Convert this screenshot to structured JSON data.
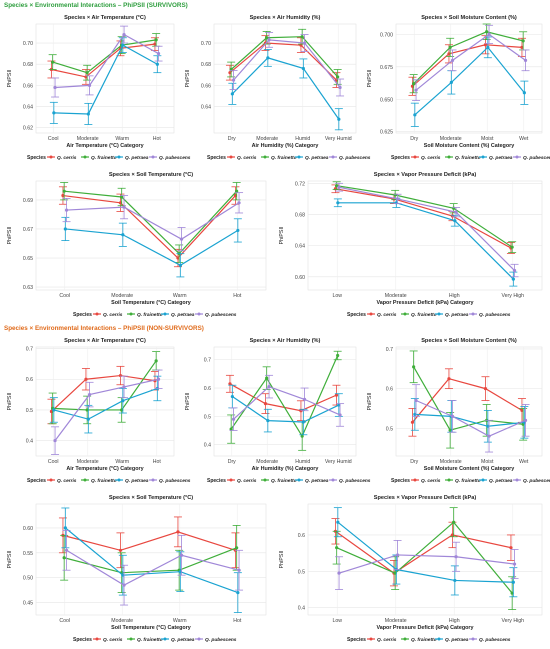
{
  "sections": {
    "survivors_title": "Species × Environmental Interactions – PhiPSII (SURVIVORS)",
    "nonsurvivors_title": "Species × Environmental Interactions – PhiPSII (NON-SURVIVORS)"
  },
  "legend": {
    "title": "Species",
    "entries": [
      "Q. cerris",
      "Q. frainetto",
      "Q. petraea",
      "Q. pubescens"
    ]
  },
  "colors": {
    "Q. cerris": "#e8473f",
    "Q. frainetto": "#3fae3a",
    "Q. petraea": "#1aa3d1",
    "Q. pubescens": "#a087d8"
  },
  "chart_data": [
    {
      "type": "line",
      "title": "Species × Air Temperature (°C)",
      "xlabel": "Air Temperature (°C) Category",
      "ylabel": "PhiPSII",
      "categories": [
        "Cool",
        "Moderate",
        "Warm",
        "Hot"
      ],
      "ylim": [
        0.615,
        0.718
      ],
      "yticks": [
        0.62,
        0.64,
        0.66,
        0.68,
        0.7
      ],
      "ytick_labels": [
        "0.62",
        "0.64",
        "0.66",
        "0.68",
        "0.70"
      ],
      "series": [
        {
          "name": "Q. cerris",
          "values": [
            0.675,
            0.668,
            0.695,
            0.699
          ],
          "err": [
            0.008,
            0.007,
            0.007,
            0.006
          ]
        },
        {
          "name": "Q. frainetto",
          "values": [
            0.682,
            0.672,
            0.698,
            0.703
          ],
          "err": [
            0.007,
            0.007,
            0.008,
            0.006
          ]
        },
        {
          "name": "Q. petraea",
          "values": [
            0.634,
            0.633,
            0.698,
            0.68
          ],
          "err": [
            0.01,
            0.01,
            0.007,
            0.008
          ]
        },
        {
          "name": "Q. pubescens",
          "values": [
            0.658,
            0.66,
            0.708,
            0.69
          ],
          "err": [
            0.009,
            0.009,
            0.008,
            0.007
          ]
        }
      ]
    },
    {
      "type": "line",
      "title": "Species × Air Humidity (%)",
      "xlabel": "Air Humidity (%) Category",
      "ylabel": "PhiPSII",
      "categories": [
        "Dry",
        "Moderate",
        "Humid",
        "Very Humid"
      ],
      "ylim": [
        0.615,
        0.718
      ],
      "yticks": [
        0.64,
        0.66,
        0.68,
        0.7
      ],
      "ytick_labels": [
        "0.64",
        "0.66",
        "0.68",
        "0.70"
      ],
      "series": [
        {
          "name": "Q. cerris",
          "values": [
            0.672,
            0.7,
            0.698,
            0.665
          ],
          "err": [
            0.007,
            0.007,
            0.007,
            0.007
          ]
        },
        {
          "name": "Q. frainetto",
          "values": [
            0.675,
            0.705,
            0.706,
            0.668
          ],
          "err": [
            0.007,
            0.006,
            0.007,
            0.007
          ]
        },
        {
          "name": "Q. petraea",
          "values": [
            0.652,
            0.686,
            0.676,
            0.628
          ],
          "err": [
            0.01,
            0.008,
            0.009,
            0.01
          ]
        },
        {
          "name": "Q. pubescens",
          "values": [
            0.665,
            0.703,
            0.7,
            0.658
          ],
          "err": [
            0.009,
            0.007,
            0.008,
            0.008
          ]
        }
      ]
    },
    {
      "type": "line",
      "title": "Species × Soil Moisture Content (%)",
      "xlabel": "Soil Moisture Content (%) Category",
      "ylabel": "PhiPSII",
      "categories": [
        "Dry",
        "Moderate",
        "Moist",
        "Wet"
      ],
      "ylim": [
        0.624,
        0.708
      ],
      "yticks": [
        0.625,
        0.65,
        0.675,
        0.7
      ],
      "ytick_labels": [
        "0.625",
        "0.650",
        "0.675",
        "0.700"
      ],
      "series": [
        {
          "name": "Q. cerris",
          "values": [
            0.66,
            0.685,
            0.692,
            0.69
          ],
          "err": [
            0.007,
            0.007,
            0.007,
            0.007
          ]
        },
        {
          "name": "Q. frainetto",
          "values": [
            0.662,
            0.69,
            0.702,
            0.695
          ],
          "err": [
            0.007,
            0.007,
            0.006,
            0.007
          ]
        },
        {
          "name": "Q. petraea",
          "values": [
            0.638,
            0.663,
            0.69,
            0.655
          ],
          "err": [
            0.009,
            0.009,
            0.008,
            0.009
          ]
        },
        {
          "name": "Q. pubescens",
          "values": [
            0.657,
            0.68,
            0.7,
            0.68
          ],
          "err": [
            0.008,
            0.008,
            0.007,
            0.008
          ]
        }
      ]
    },
    {
      "type": "line",
      "title": "Species × Soil Temperature (°C)",
      "xlabel": "Soil Temperature (°C) Category",
      "ylabel": "PhiPSII",
      "categories": [
        "Cool",
        "Moderate",
        "Warm",
        "Hot"
      ],
      "ylim": [
        0.628,
        0.703
      ],
      "yticks": [
        0.63,
        0.65,
        0.67,
        0.69
      ],
      "ytick_labels": [
        "0.63",
        "0.65",
        "0.67",
        "0.69"
      ],
      "series": [
        {
          "name": "Q. cerris",
          "values": [
            0.693,
            0.688,
            0.65,
            0.693
          ],
          "err": [
            0.006,
            0.006,
            0.006,
            0.006
          ]
        },
        {
          "name": "Q. frainetto",
          "values": [
            0.696,
            0.692,
            0.653,
            0.696
          ],
          "err": [
            0.006,
            0.006,
            0.006,
            0.006
          ]
        },
        {
          "name": "Q. petraea",
          "values": [
            0.67,
            0.666,
            0.645,
            0.669
          ],
          "err": [
            0.008,
            0.008,
            0.008,
            0.008
          ]
        },
        {
          "name": "Q. pubescens",
          "values": [
            0.683,
            0.685,
            0.663,
            0.688
          ],
          "err": [
            0.008,
            0.008,
            0.008,
            0.007
          ]
        }
      ]
    },
    {
      "type": "line",
      "title": "Species × Vapor Pressure Deficit (kPa)",
      "xlabel": "Vapor Pressure Deficit (kPa) Category",
      "ylabel": "PhiPSII",
      "categories": [
        "Low",
        "Moderate",
        "High",
        "Very High"
      ],
      "ylim": [
        0.583,
        0.723
      ],
      "yticks": [
        0.6,
        0.64,
        0.68,
        0.72
      ],
      "ytick_labels": [
        "0.60",
        "0.64",
        "0.68",
        "0.72"
      ],
      "series": [
        {
          "name": "Q. cerris",
          "values": [
            0.713,
            0.7,
            0.678,
            0.637
          ],
          "err": [
            0.005,
            0.006,
            0.006,
            0.007
          ]
        },
        {
          "name": "Q. frainetto",
          "values": [
            0.717,
            0.705,
            0.688,
            0.638
          ],
          "err": [
            0.005,
            0.006,
            0.006,
            0.007
          ]
        },
        {
          "name": "Q. petraea",
          "values": [
            0.695,
            0.695,
            0.672,
            0.597
          ],
          "err": [
            0.005,
            0.006,
            0.007,
            0.009
          ]
        },
        {
          "name": "Q. pubescens",
          "values": [
            0.715,
            0.7,
            0.683,
            0.608
          ],
          "err": [
            0.005,
            0.006,
            0.006,
            0.008
          ]
        }
      ]
    },
    {
      "type": "line",
      "title": "Species × Air Temperature (°C)",
      "xlabel": "Air Temperature (°C) Category",
      "ylabel": "PhiPSII",
      "categories": [
        "Cool",
        "Moderate",
        "Warm",
        "Hot"
      ],
      "ylim": [
        0.35,
        0.705
      ],
      "yticks": [
        0.4,
        0.5,
        0.6,
        0.7
      ],
      "ytick_labels": [
        "0.4",
        "0.5",
        "0.6",
        "0.7"
      ],
      "series": [
        {
          "name": "Q. cerris",
          "values": [
            0.495,
            0.6,
            0.612,
            0.595
          ],
          "err": [
            0.04,
            0.035,
            0.03,
            0.03
          ]
        },
        {
          "name": "Q. frainetto",
          "values": [
            0.505,
            0.5,
            0.5,
            0.66
          ],
          "err": [
            0.05,
            0.045,
            0.04,
            0.03
          ]
        },
        {
          "name": "Q. petraea",
          "values": [
            0.5,
            0.47,
            0.53,
            0.57
          ],
          "err": [
            0.04,
            0.045,
            0.04,
            0.04
          ]
        },
        {
          "name": "Q. pubescens",
          "values": [
            0.4,
            0.55,
            0.575,
            0.6
          ],
          "err": [
            0.045,
            0.04,
            0.035,
            0.03
          ]
        }
      ]
    },
    {
      "type": "line",
      "title": "Species × Air Humidity (%)",
      "xlabel": "Air Humidity (%) Category",
      "ylabel": "PhiPSII",
      "categories": [
        "Dry",
        "Moderate",
        "Humid",
        "Very Humid"
      ],
      "ylim": [
        0.36,
        0.745
      ],
      "yticks": [
        0.4,
        0.5,
        0.6,
        0.7
      ],
      "ytick_labels": [
        "0.4",
        "0.5",
        "0.6",
        "0.7"
      ],
      "series": [
        {
          "name": "Q. cerris",
          "values": [
            0.615,
            0.545,
            0.52,
            0.575
          ],
          "err": [
            0.03,
            0.035,
            0.035,
            0.035
          ]
        },
        {
          "name": "Q. frainetto",
          "values": [
            0.455,
            0.635,
            0.43,
            0.715
          ],
          "err": [
            0.05,
            0.04,
            0.05,
            0.015
          ]
        },
        {
          "name": "Q. petraea",
          "values": [
            0.57,
            0.485,
            0.48,
            0.54
          ],
          "err": [
            0.04,
            0.04,
            0.045,
            0.04
          ]
        },
        {
          "name": "Q. pubescens",
          "values": [
            0.49,
            0.605,
            0.56,
            0.505
          ],
          "err": [
            0.04,
            0.04,
            0.04,
            0.04
          ]
        }
      ]
    },
    {
      "type": "line",
      "title": "Species × Soil Moisture Content (%)",
      "xlabel": "Soil Moisture Content (%) Category",
      "ylabel": "PhiPSII",
      "categories": [
        "Dry",
        "Moderate",
        "Moist",
        "Wet"
      ],
      "ylim": [
        0.43,
        0.705
      ],
      "yticks": [
        0.5,
        0.6,
        0.7
      ],
      "ytick_labels": [
        "0.5",
        "0.6",
        "0.7"
      ],
      "series": [
        {
          "name": "Q. cerris",
          "values": [
            0.515,
            0.625,
            0.6,
            0.545
          ],
          "err": [
            0.035,
            0.025,
            0.03,
            0.03
          ]
        },
        {
          "name": "Q. frainetto",
          "values": [
            0.655,
            0.495,
            0.52,
            0.51
          ],
          "err": [
            0.04,
            0.045,
            0.04,
            0.04
          ]
        },
        {
          "name": "Q. petraea",
          "values": [
            0.535,
            0.53,
            0.505,
            0.515
          ],
          "err": [
            0.04,
            0.04,
            0.04,
            0.04
          ]
        },
        {
          "name": "Q. pubescens",
          "values": [
            0.57,
            0.53,
            0.48,
            0.52
          ],
          "err": [
            0.04,
            0.04,
            0.04,
            0.04
          ]
        }
      ]
    },
    {
      "type": "line",
      "title": "Species × Soil Temperature (°C)",
      "xlabel": "Soil Temperature (°C) Category",
      "ylabel": "PhiPSII",
      "categories": [
        "Cool",
        "Moderate",
        "Warm",
        "Hot"
      ],
      "ylim": [
        0.425,
        0.648
      ],
      "yticks": [
        0.45,
        0.5,
        0.55,
        0.6
      ],
      "ytick_labels": [
        "0.45",
        "0.50",
        "0.55",
        "0.60"
      ],
      "series": [
        {
          "name": "Q. cerris",
          "values": [
            0.585,
            0.555,
            0.592,
            0.555
          ],
          "err": [
            0.035,
            0.035,
            0.03,
            0.035
          ]
        },
        {
          "name": "Q. frainetto",
          "values": [
            0.54,
            0.51,
            0.515,
            0.56
          ],
          "err": [
            0.045,
            0.04,
            0.04,
            0.045
          ]
        },
        {
          "name": "Q. petraea",
          "values": [
            0.6,
            0.505,
            0.512,
            0.47
          ],
          "err": [
            0.04,
            0.04,
            0.04,
            0.04
          ]
        },
        {
          "name": "Q. pubescens",
          "values": [
            0.555,
            0.485,
            0.545,
            0.515
          ],
          "err": [
            0.04,
            0.04,
            0.04,
            0.04
          ]
        }
      ]
    },
    {
      "type": "line",
      "title": "Species × Vapor Pressure Deficit (kPa)",
      "xlabel": "Vapor Pressure Deficit (kPa) Category",
      "ylabel": "PhiPSII",
      "categories": [
        "Low",
        "Moderate",
        "High",
        "Very High"
      ],
      "ylim": [
        0.38,
        0.685
      ],
      "yticks": [
        0.4,
        0.5,
        0.6
      ],
      "ytick_labels": [
        "0.4",
        "0.5",
        "0.6"
      ],
      "series": [
        {
          "name": "Q. cerris",
          "values": [
            0.61,
            0.495,
            0.6,
            0.565
          ],
          "err": [
            0.035,
            0.035,
            0.035,
            0.035
          ]
        },
        {
          "name": "Q. frainetto",
          "values": [
            0.565,
            0.495,
            0.635,
            0.44
          ],
          "err": [
            0.045,
            0.045,
            0.04,
            0.045
          ]
        },
        {
          "name": "Q. petraea",
          "values": [
            0.635,
            0.505,
            0.475,
            0.47
          ],
          "err": [
            0.04,
            0.04,
            0.04,
            0.04
          ]
        },
        {
          "name": "Q. pubescens",
          "values": [
            0.495,
            0.545,
            0.54,
            0.52
          ],
          "err": [
            0.045,
            0.04,
            0.04,
            0.04
          ]
        }
      ]
    }
  ]
}
